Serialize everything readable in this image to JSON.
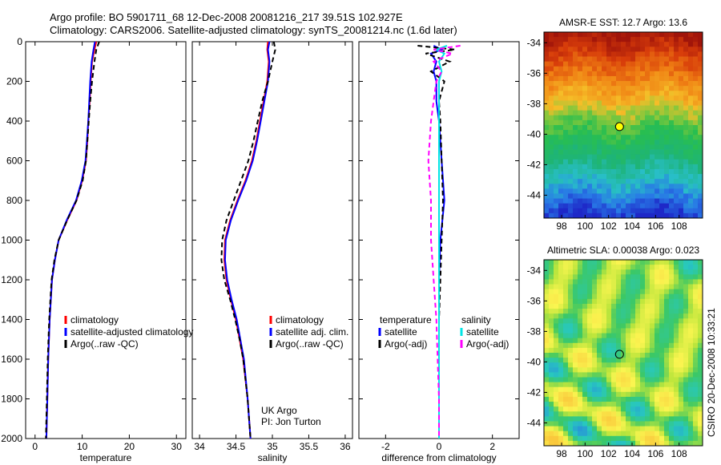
{
  "title": {
    "line1": "Argo profile: BO 5901711_68 12-Dec-2008 20081216_217 39.51S 102.927E",
    "line2": "Climatology: CARS2006. Satellite-adjusted climatology: synTS_20081214.nc (1.6d later)"
  },
  "side_label": "CSIRO 20-Dec-2008 10:33:21",
  "colors": {
    "climatology": "#ff0000",
    "satellite": "#0000ff",
    "argo": "#000000",
    "sal_satellite": "#00e5e5",
    "sal_argo": "#ff00ff",
    "marker_sst": "#ffff00",
    "marker_sla": "#ffff00"
  },
  "depth_axis": {
    "ylim": [
      0,
      2000
    ],
    "ticks": [
      0,
      200,
      400,
      600,
      800,
      1000,
      1200,
      1400,
      1600,
      1800,
      2000
    ],
    "inverted": true
  },
  "chart_data": [
    {
      "type": "line",
      "id": "temperature",
      "xlabel": "temperature",
      "xlim": [
        -2,
        32
      ],
      "xticks": [
        0,
        10,
        20,
        30
      ],
      "legend": [
        "climatology",
        "satellite-adjusted climatology",
        "Argo(..raw -QC)"
      ],
      "depth": [
        0,
        40,
        100,
        200,
        300,
        400,
        500,
        600,
        700,
        800,
        900,
        1000,
        1100,
        1200,
        1400,
        1600,
        1800,
        2000
      ],
      "series": [
        {
          "name": "climatology",
          "style": "solid",
          "values": [
            13.0,
            12.6,
            12.1,
            11.8,
            11.6,
            11.3,
            11.1,
            10.8,
            10.0,
            8.8,
            6.8,
            5.0,
            4.2,
            3.6,
            3.1,
            2.8,
            2.6,
            2.4
          ]
        },
        {
          "name": "satellite-adjusted climatology",
          "style": "solid",
          "values": [
            12.7,
            12.4,
            12.0,
            11.7,
            11.5,
            11.3,
            11.0,
            10.7,
            9.9,
            8.7,
            6.7,
            5.0,
            4.2,
            3.6,
            3.1,
            2.8,
            2.6,
            2.4
          ]
        },
        {
          "name": "Argo(..raw -QC)",
          "style": "dashed",
          "values": [
            13.6,
            13.0,
            12.6,
            12.1,
            11.7,
            11.4,
            11.1,
            10.8,
            10.1,
            8.8,
            6.8,
            5.0,
            4.1,
            3.5,
            3.0,
            2.7,
            2.5,
            2.3
          ]
        }
      ]
    },
    {
      "type": "line",
      "id": "salinity",
      "xlabel": "salinity",
      "xlim": [
        33.9,
        36.1
      ],
      "xticks": [
        34,
        34.5,
        35,
        35.5,
        36
      ],
      "legend": [
        "climatology",
        "satellite adj. clim.",
        "Argo(..raw -QC)"
      ],
      "annotation": [
        "UK Argo",
        "PI: Jon Turton"
      ],
      "depth": [
        0,
        40,
        100,
        200,
        300,
        400,
        500,
        600,
        700,
        800,
        900,
        1000,
        1100,
        1200,
        1300,
        1400,
        1500,
        1600,
        1800,
        2000
      ],
      "series": [
        {
          "name": "climatology",
          "style": "solid",
          "values": [
            34.94,
            34.93,
            34.95,
            34.93,
            34.88,
            34.83,
            34.78,
            34.72,
            34.63,
            34.52,
            34.42,
            34.35,
            34.34,
            34.37,
            34.43,
            34.5,
            34.55,
            34.6,
            34.66,
            34.7
          ]
        },
        {
          "name": "satellite adj. clim.",
          "style": "solid",
          "values": [
            34.96,
            34.94,
            34.96,
            34.94,
            34.89,
            34.84,
            34.79,
            34.73,
            34.64,
            34.53,
            34.43,
            34.36,
            34.35,
            34.38,
            34.44,
            34.51,
            34.56,
            34.61,
            34.66,
            34.7
          ]
        },
        {
          "name": "Argo(..raw -QC)",
          "style": "dashed",
          "values": [
            35.02,
            35.04,
            35.0,
            34.94,
            34.86,
            34.8,
            34.74,
            34.67,
            34.57,
            34.47,
            34.37,
            34.31,
            34.3,
            34.34,
            34.42,
            34.49,
            34.55,
            34.6,
            34.66,
            34.7
          ]
        }
      ]
    },
    {
      "type": "line",
      "id": "difference",
      "xlabel": "difference from climatology",
      "xlim": [
        -3,
        3
      ],
      "xticks": [
        -2,
        0,
        2
      ],
      "legend_left": [
        "temperature",
        "satellite",
        "Argo(-adj)"
      ],
      "legend_right": [
        "salinity",
        "satellite",
        "Argo(-adj)"
      ],
      "depth": [
        20,
        40,
        60,
        100,
        150,
        200,
        300,
        400,
        600,
        800,
        1000,
        1200,
        1400,
        1600,
        1800,
        2000
      ],
      "series": [
        {
          "name": "temperature satellite",
          "color_key": "satellite",
          "style": "solid",
          "values": [
            -0.2,
            0.1,
            -0.3,
            -0.1,
            -0.2,
            -0.1,
            -0.1,
            0.0,
            0.1,
            0.2,
            0.05,
            0.0,
            0.0,
            0.0,
            0.0,
            0.0
          ]
        },
        {
          "name": "temperature Argo(-adj)",
          "color_key": "argo",
          "style": "dashed",
          "values": [
            -0.8,
            0.6,
            -0.5,
            0.4,
            -0.3,
            0.2,
            0.0,
            0.05,
            0.1,
            0.15,
            0.1,
            0.05,
            0.0,
            0.0,
            0.0,
            0.0
          ]
        },
        {
          "name": "salinity satellite",
          "color_key": "sal_satellite",
          "style": "solid",
          "values": [
            0.3,
            -0.1,
            0.2,
            0.0,
            0.1,
            0.0,
            0.0,
            0.0,
            0.0,
            0.0,
            0.0,
            0.0,
            0.0,
            0.0,
            0.0,
            0.0
          ]
        },
        {
          "name": "salinity Argo(-adj)",
          "color_key": "sal_argo",
          "style": "dashed",
          "values": [
            0.8,
            -0.2,
            0.5,
            -0.2,
            0.1,
            -0.1,
            -0.2,
            -0.3,
            -0.4,
            -0.3,
            -0.3,
            -0.2,
            -0.1,
            -0.05,
            0.0,
            0.0
          ]
        }
      ]
    },
    {
      "type": "heatmap",
      "id": "sst_map",
      "title": "AMSR-E SST: 12.7 Argo: 13.6",
      "xlim": [
        96.5,
        110
      ],
      "ylim": [
        -45.5,
        -33.3
      ],
      "xticks": [
        98,
        100,
        102,
        104,
        106,
        108
      ],
      "yticks": [
        -34,
        -36,
        -38,
        -40,
        -42,
        -44
      ],
      "marker": {
        "lon": 102.93,
        "lat": -39.5
      }
    },
    {
      "type": "heatmap",
      "id": "sla_map",
      "title": "Altimetric SLA: 0.00038 Argo: 0.023",
      "xlim": [
        96.5,
        110
      ],
      "ylim": [
        -45.5,
        -33.3
      ],
      "xticks": [
        98,
        100,
        102,
        104,
        106,
        108
      ],
      "yticks": [
        -34,
        -36,
        -38,
        -40,
        -42,
        -44
      ],
      "marker": {
        "lon": 102.93,
        "lat": -39.5
      }
    }
  ]
}
